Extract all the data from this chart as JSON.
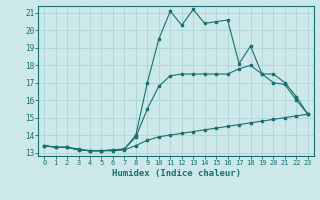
{
  "title": "",
  "xlabel": "Humidex (Indice chaleur)",
  "ylabel": "",
  "xlim": [
    -0.5,
    23.5
  ],
  "ylim": [
    12.8,
    21.4
  ],
  "xticks": [
    0,
    1,
    2,
    3,
    4,
    5,
    6,
    7,
    8,
    9,
    10,
    11,
    12,
    13,
    14,
    15,
    16,
    17,
    18,
    19,
    20,
    21,
    22,
    23
  ],
  "yticks": [
    13,
    14,
    15,
    16,
    17,
    18,
    19,
    20,
    21
  ],
  "background_color": "#cce8e8",
  "grid_color": "#b0d8d8",
  "line_color": "#1a7070",
  "line1_x": [
    0,
    1,
    2,
    3,
    4,
    5,
    6,
    7,
    8,
    9,
    10,
    11,
    12,
    13,
    14,
    15,
    16,
    17,
    18,
    19,
    20,
    21,
    22,
    23
  ],
  "line1_y": [
    13.4,
    13.3,
    13.3,
    13.2,
    13.1,
    13.1,
    13.1,
    13.15,
    13.4,
    13.7,
    13.9,
    14.0,
    14.1,
    14.2,
    14.3,
    14.4,
    14.5,
    14.6,
    14.7,
    14.8,
    14.9,
    15.0,
    15.1,
    15.2
  ],
  "line2_x": [
    0,
    1,
    2,
    3,
    4,
    5,
    6,
    7,
    8,
    9,
    10,
    11,
    12,
    13,
    14,
    15,
    16,
    17,
    18,
    19,
    20,
    21,
    22,
    23
  ],
  "line2_y": [
    13.4,
    13.3,
    13.3,
    13.15,
    13.1,
    13.1,
    13.15,
    13.2,
    14.0,
    17.0,
    19.5,
    21.1,
    20.3,
    21.2,
    20.4,
    20.5,
    20.6,
    18.1,
    19.1,
    17.5,
    17.0,
    16.9,
    16.0,
    15.2
  ],
  "line3_x": [
    0,
    1,
    2,
    3,
    4,
    5,
    6,
    7,
    8,
    9,
    10,
    11,
    12,
    13,
    14,
    15,
    16,
    17,
    18,
    19,
    20,
    21,
    22,
    23
  ],
  "line3_y": [
    13.4,
    13.3,
    13.3,
    13.15,
    13.1,
    13.1,
    13.15,
    13.2,
    13.9,
    15.5,
    16.8,
    17.4,
    17.5,
    17.5,
    17.5,
    17.5,
    17.5,
    17.8,
    18.0,
    17.5,
    17.5,
    17.0,
    16.2,
    15.2
  ]
}
